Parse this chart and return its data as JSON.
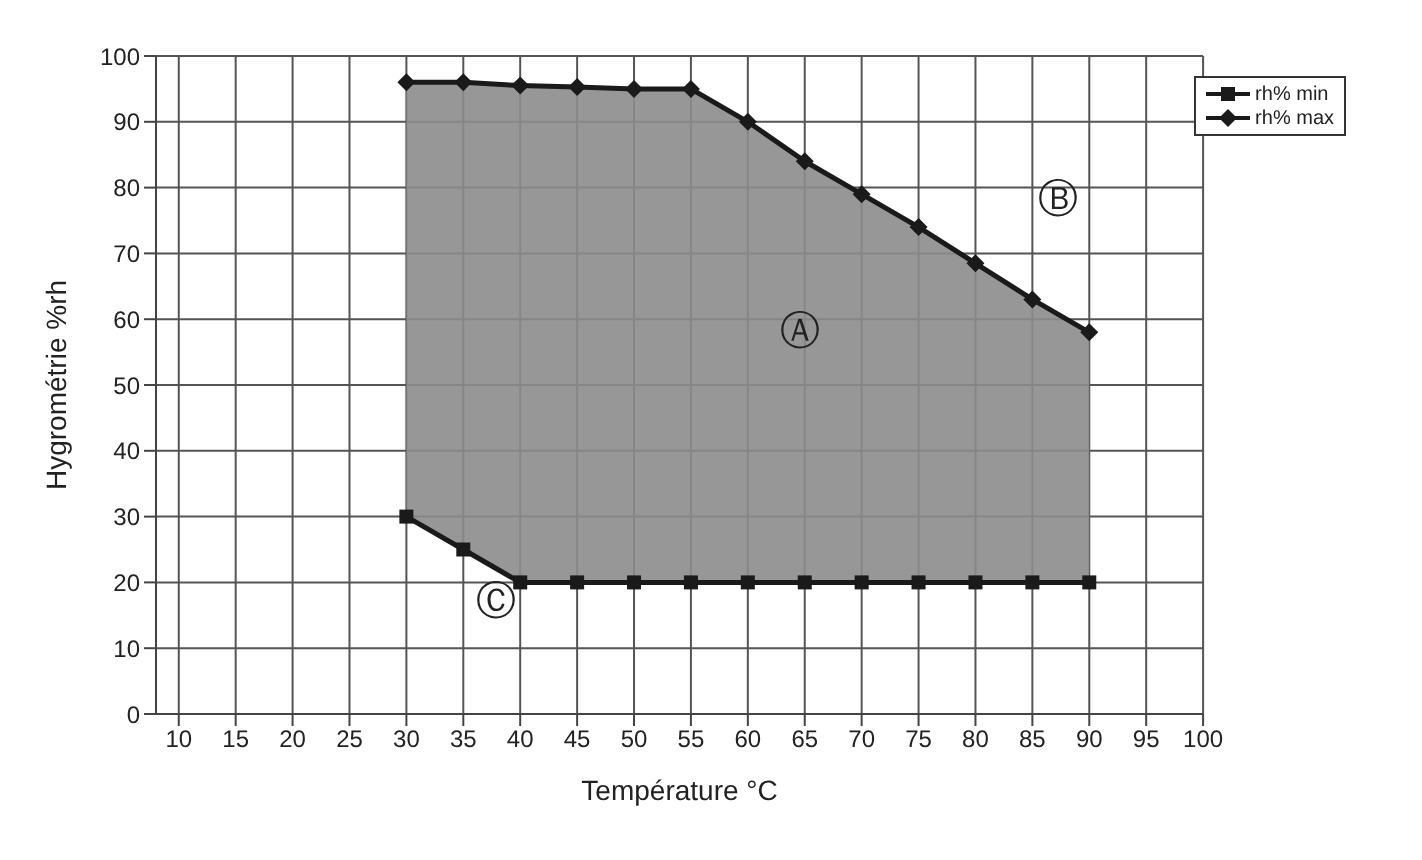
{
  "chart_data": {
    "type": "line",
    "xlabel": "Température °C",
    "ylabel": "Hygrométrie %rh",
    "x": [
      30,
      35,
      40,
      45,
      50,
      55,
      60,
      65,
      70,
      75,
      80,
      85,
      90
    ],
    "series": [
      {
        "name": "rh% min",
        "color": "#1a1a1a",
        "marker": "square",
        "values": [
          30,
          25,
          20,
          20,
          20,
          20,
          20,
          20,
          20,
          20,
          20,
          20,
          20
        ]
      },
      {
        "name": "rh% max",
        "color": "#1a1a1a",
        "marker": "diamond",
        "values": [
          96,
          96,
          95.5,
          95.3,
          95,
          95,
          90,
          84,
          79,
          74,
          68.5,
          63,
          58
        ],
        "lower": [
          30,
          25,
          20,
          20,
          20,
          20,
          20,
          20,
          20,
          20,
          20,
          20,
          20
        ],
        "upper": [
          96,
          96,
          95.5,
          95.3,
          95,
          95,
          90,
          84,
          79,
          74,
          68.5,
          63,
          58
        ]
      }
    ],
    "xlim": [
      8,
      100
    ],
    "xticks": [
      10,
      15,
      20,
      25,
      30,
      35,
      40,
      45,
      50,
      55,
      60,
      65,
      70,
      75,
      80,
      85,
      90,
      95,
      100
    ],
    "ylim": [
      0,
      100
    ],
    "yticks": [
      0,
      10,
      20,
      30,
      40,
      50,
      60,
      70,
      80,
      90,
      100
    ],
    "annotations": [
      "Ⓐ",
      "Ⓑ",
      "Ⓒ"
    ],
    "grid": true,
    "legend": "top right",
    "line_style": "solid"
  }
}
